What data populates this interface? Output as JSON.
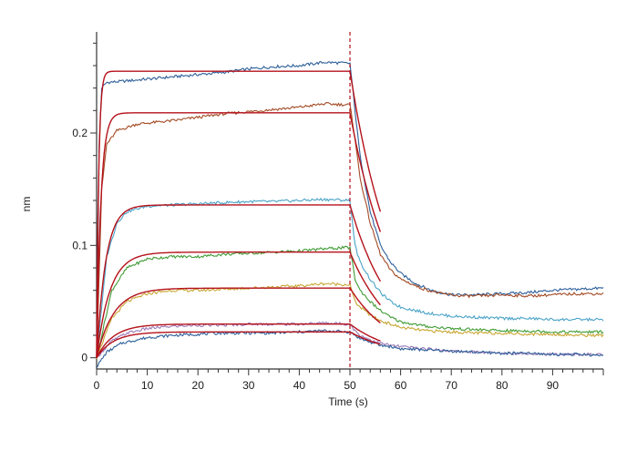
{
  "chart_data": {
    "type": "line",
    "title": "",
    "xlabel": "Time (s)",
    "ylabel": "nm",
    "xlim": [
      0,
      100
    ],
    "ylim": [
      -0.01,
      0.29
    ],
    "xticks": [
      0,
      10,
      20,
      30,
      40,
      50,
      60,
      70,
      80,
      90
    ],
    "yticks_labeled": [
      0,
      0.1,
      0.2
    ],
    "ytick_labels": [
      "0",
      "0.1",
      "0.2"
    ],
    "xtick_labels": [
      "0",
      "10",
      "20",
      "30",
      "40",
      "50",
      "60",
      "70",
      "80",
      "90"
    ],
    "grid": false,
    "legend": "none",
    "association_end": 50,
    "colors": {
      "fit": "#b5121b",
      "marker": "#b5121b",
      "axis": "#333333"
    },
    "series": [
      {
        "color": "#2e5f9a",
        "data_points": [
          [
            0,
            0.0
          ],
          [
            0.5,
            0.19
          ],
          [
            1,
            0.24
          ],
          [
            2,
            0.245
          ],
          [
            5,
            0.246
          ],
          [
            10,
            0.248
          ],
          [
            15,
            0.25
          ],
          [
            20,
            0.252
          ],
          [
            25,
            0.254
          ],
          [
            30,
            0.257
          ],
          [
            35,
            0.259
          ],
          [
            40,
            0.26
          ],
          [
            45,
            0.263
          ],
          [
            50,
            0.262
          ],
          [
            51,
            0.22
          ],
          [
            52,
            0.18
          ],
          [
            54,
            0.13
          ],
          [
            56,
            0.1
          ],
          [
            58,
            0.085
          ],
          [
            60,
            0.075
          ],
          [
            63,
            0.066
          ],
          [
            66,
            0.06
          ],
          [
            70,
            0.056
          ],
          [
            75,
            0.056
          ],
          [
            80,
            0.057
          ],
          [
            85,
            0.058
          ],
          [
            90,
            0.06
          ],
          [
            95,
            0.061
          ],
          [
            100,
            0.062
          ]
        ],
        "fit_assoc_plateau": 0.255,
        "fit_assoc_rate": 2.5,
        "fit_diss_end": 0.13,
        "fit_diss_x_end": 56
      },
      {
        "color": "#a34a24",
        "data_points": [
          [
            0,
            0.0
          ],
          [
            1,
            0.15
          ],
          [
            2,
            0.19
          ],
          [
            4,
            0.202
          ],
          [
            8,
            0.208
          ],
          [
            15,
            0.211
          ],
          [
            20,
            0.214
          ],
          [
            25,
            0.217
          ],
          [
            30,
            0.219
          ],
          [
            35,
            0.221
          ],
          [
            40,
            0.223
          ],
          [
            45,
            0.226
          ],
          [
            50,
            0.225
          ],
          [
            51,
            0.195
          ],
          [
            52,
            0.16
          ],
          [
            54,
            0.12
          ],
          [
            56,
            0.092
          ],
          [
            58,
            0.078
          ],
          [
            60,
            0.07
          ],
          [
            64,
            0.062
          ],
          [
            68,
            0.057
          ],
          [
            72,
            0.055
          ],
          [
            76,
            0.055
          ],
          [
            80,
            0.056
          ],
          [
            85,
            0.055
          ],
          [
            90,
            0.056
          ],
          [
            95,
            0.057
          ],
          [
            100,
            0.057
          ]
        ],
        "fit_assoc_plateau": 0.218,
        "fit_assoc_rate": 1.2,
        "fit_diss_end": 0.112,
        "fit_diss_x_end": 56
      },
      {
        "color": "#4aa3c8",
        "data_points": [
          [
            0,
            0.0
          ],
          [
            2,
            0.09
          ],
          [
            4,
            0.12
          ],
          [
            6,
            0.13
          ],
          [
            10,
            0.135
          ],
          [
            15,
            0.136
          ],
          [
            20,
            0.137
          ],
          [
            25,
            0.138
          ],
          [
            30,
            0.139
          ],
          [
            35,
            0.139
          ],
          [
            40,
            0.14
          ],
          [
            45,
            0.141
          ],
          [
            50,
            0.14
          ],
          [
            51,
            0.1
          ],
          [
            52,
            0.085
          ],
          [
            54,
            0.07
          ],
          [
            56,
            0.058
          ],
          [
            58,
            0.05
          ],
          [
            60,
            0.045
          ],
          [
            65,
            0.04
          ],
          [
            70,
            0.037
          ],
          [
            75,
            0.036
          ],
          [
            80,
            0.035
          ],
          [
            85,
            0.035
          ],
          [
            90,
            0.034
          ],
          [
            95,
            0.034
          ],
          [
            100,
            0.034
          ]
        ],
        "fit_assoc_plateau": 0.136,
        "fit_assoc_rate": 0.55,
        "fit_diss_end": 0.068,
        "fit_diss_x_end": 56
      },
      {
        "color": "#3f9c35",
        "data_points": [
          [
            0,
            0.0
          ],
          [
            3,
            0.06
          ],
          [
            6,
            0.08
          ],
          [
            10,
            0.088
          ],
          [
            15,
            0.09
          ],
          [
            20,
            0.09
          ],
          [
            25,
            0.092
          ],
          [
            30,
            0.093
          ],
          [
            35,
            0.094
          ],
          [
            40,
            0.095
          ],
          [
            45,
            0.097
          ],
          [
            49,
            0.098
          ],
          [
            50,
            0.098
          ],
          [
            51,
            0.07
          ],
          [
            52,
            0.06
          ],
          [
            54,
            0.05
          ],
          [
            56,
            0.042
          ],
          [
            58,
            0.036
          ],
          [
            60,
            0.032
          ],
          [
            65,
            0.028
          ],
          [
            70,
            0.026
          ],
          [
            75,
            0.025
          ],
          [
            80,
            0.024
          ],
          [
            85,
            0.024
          ],
          [
            90,
            0.023
          ],
          [
            95,
            0.023
          ],
          [
            100,
            0.023
          ]
        ],
        "fit_assoc_plateau": 0.094,
        "fit_assoc_rate": 0.38,
        "fit_diss_end": 0.047,
        "fit_diss_x_end": 56
      },
      {
        "color": "#c8a632",
        "data_points": [
          [
            0,
            0.0
          ],
          [
            3,
            0.035
          ],
          [
            6,
            0.05
          ],
          [
            10,
            0.057
          ],
          [
            15,
            0.06
          ],
          [
            20,
            0.06
          ],
          [
            25,
            0.061
          ],
          [
            30,
            0.062
          ],
          [
            35,
            0.063
          ],
          [
            40,
            0.064
          ],
          [
            45,
            0.066
          ],
          [
            50,
            0.065
          ],
          [
            51,
            0.05
          ],
          [
            52,
            0.045
          ],
          [
            54,
            0.038
          ],
          [
            56,
            0.033
          ],
          [
            58,
            0.03
          ],
          [
            60,
            0.027
          ],
          [
            65,
            0.024
          ],
          [
            70,
            0.023
          ],
          [
            75,
            0.022
          ],
          [
            80,
            0.022
          ],
          [
            85,
            0.021
          ],
          [
            90,
            0.021
          ],
          [
            95,
            0.02
          ],
          [
            100,
            0.02
          ]
        ],
        "fit_assoc_plateau": 0.062,
        "fit_assoc_rate": 0.3,
        "fit_diss_end": 0.031,
        "fit_diss_x_end": 56
      },
      {
        "color": "#9c7ab8",
        "data_points": [
          [
            0,
            0.0
          ],
          [
            3,
            0.015
          ],
          [
            6,
            0.022
          ],
          [
            10,
            0.026
          ],
          [
            15,
            0.028
          ],
          [
            20,
            0.029
          ],
          [
            25,
            0.029
          ],
          [
            30,
            0.03
          ],
          [
            35,
            0.03
          ],
          [
            40,
            0.03
          ],
          [
            45,
            0.031
          ],
          [
            50,
            0.03
          ],
          [
            51,
            0.024
          ],
          [
            52,
            0.02
          ],
          [
            54,
            0.016
          ],
          [
            56,
            0.013
          ],
          [
            58,
            0.011
          ],
          [
            60,
            0.01
          ],
          [
            65,
            0.008
          ],
          [
            70,
            0.006
          ],
          [
            75,
            0.005
          ],
          [
            80,
            0.004
          ],
          [
            85,
            0.004
          ],
          [
            90,
            0.003
          ],
          [
            95,
            0.003
          ],
          [
            100,
            0.003
          ]
        ],
        "fit_assoc_plateau": 0.03,
        "fit_assoc_rate": 0.3,
        "fit_diss_end": 0.015,
        "fit_diss_x_end": 56
      },
      {
        "color": "#2e5f9a",
        "data_points": [
          [
            0,
            -0.008
          ],
          [
            2,
            0.005
          ],
          [
            5,
            0.013
          ],
          [
            10,
            0.018
          ],
          [
            15,
            0.02
          ],
          [
            20,
            0.021
          ],
          [
            25,
            0.022
          ],
          [
            30,
            0.022
          ],
          [
            35,
            0.022
          ],
          [
            40,
            0.023
          ],
          [
            45,
            0.024
          ],
          [
            50,
            0.023
          ],
          [
            51,
            0.02
          ],
          [
            52,
            0.017
          ],
          [
            54,
            0.014
          ],
          [
            56,
            0.011
          ],
          [
            58,
            0.01
          ],
          [
            60,
            0.008
          ],
          [
            65,
            0.007
          ],
          [
            70,
            0.006
          ],
          [
            75,
            0.005
          ],
          [
            80,
            0.004
          ],
          [
            85,
            0.004
          ],
          [
            90,
            0.003
          ],
          [
            95,
            0.003
          ],
          [
            100,
            0.002
          ]
        ],
        "fit_assoc_plateau": 0.023,
        "fit_assoc_rate": 0.3,
        "fit_diss_end": 0.012,
        "fit_diss_x_end": 56
      }
    ]
  }
}
